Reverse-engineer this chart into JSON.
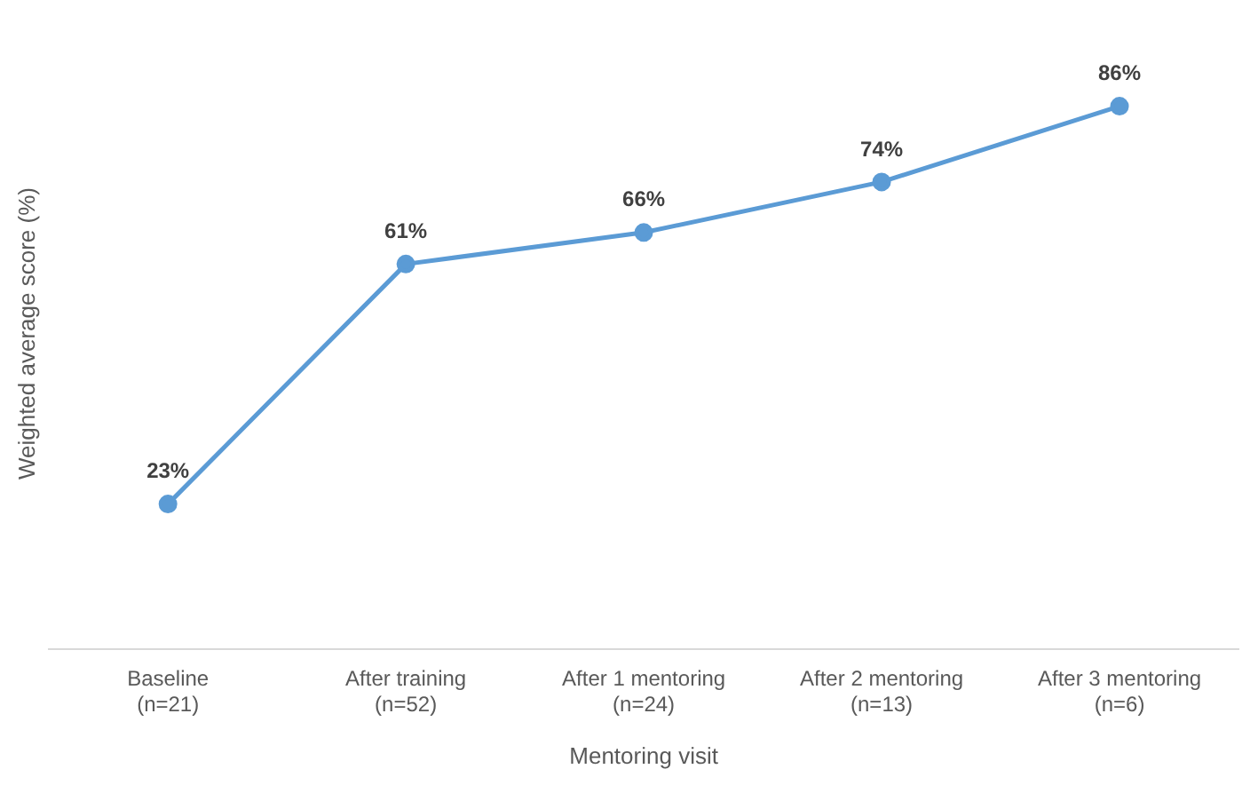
{
  "chart_data": {
    "type": "line",
    "xlabel": "Mentoring visit",
    "ylabel": "Weighted average score (%)",
    "categories": [
      "Baseline\n(n=21)",
      "After training\n(n=52)",
      "After 1 mentoring\n(n=24)",
      "After 2 mentoring\n(n=13)",
      "After 3 mentoring\n(n=6)"
    ],
    "series": [
      {
        "color": "#5b9bd5",
        "values": [
          23,
          61,
          66,
          74,
          86
        ],
        "value_labels": [
          "23%",
          "61%",
          "66%",
          "74%",
          "86%"
        ]
      }
    ],
    "tick_labels": "x",
    "grid": false,
    "legend": false,
    "marker": "circle",
    "line_style": "solid"
  }
}
